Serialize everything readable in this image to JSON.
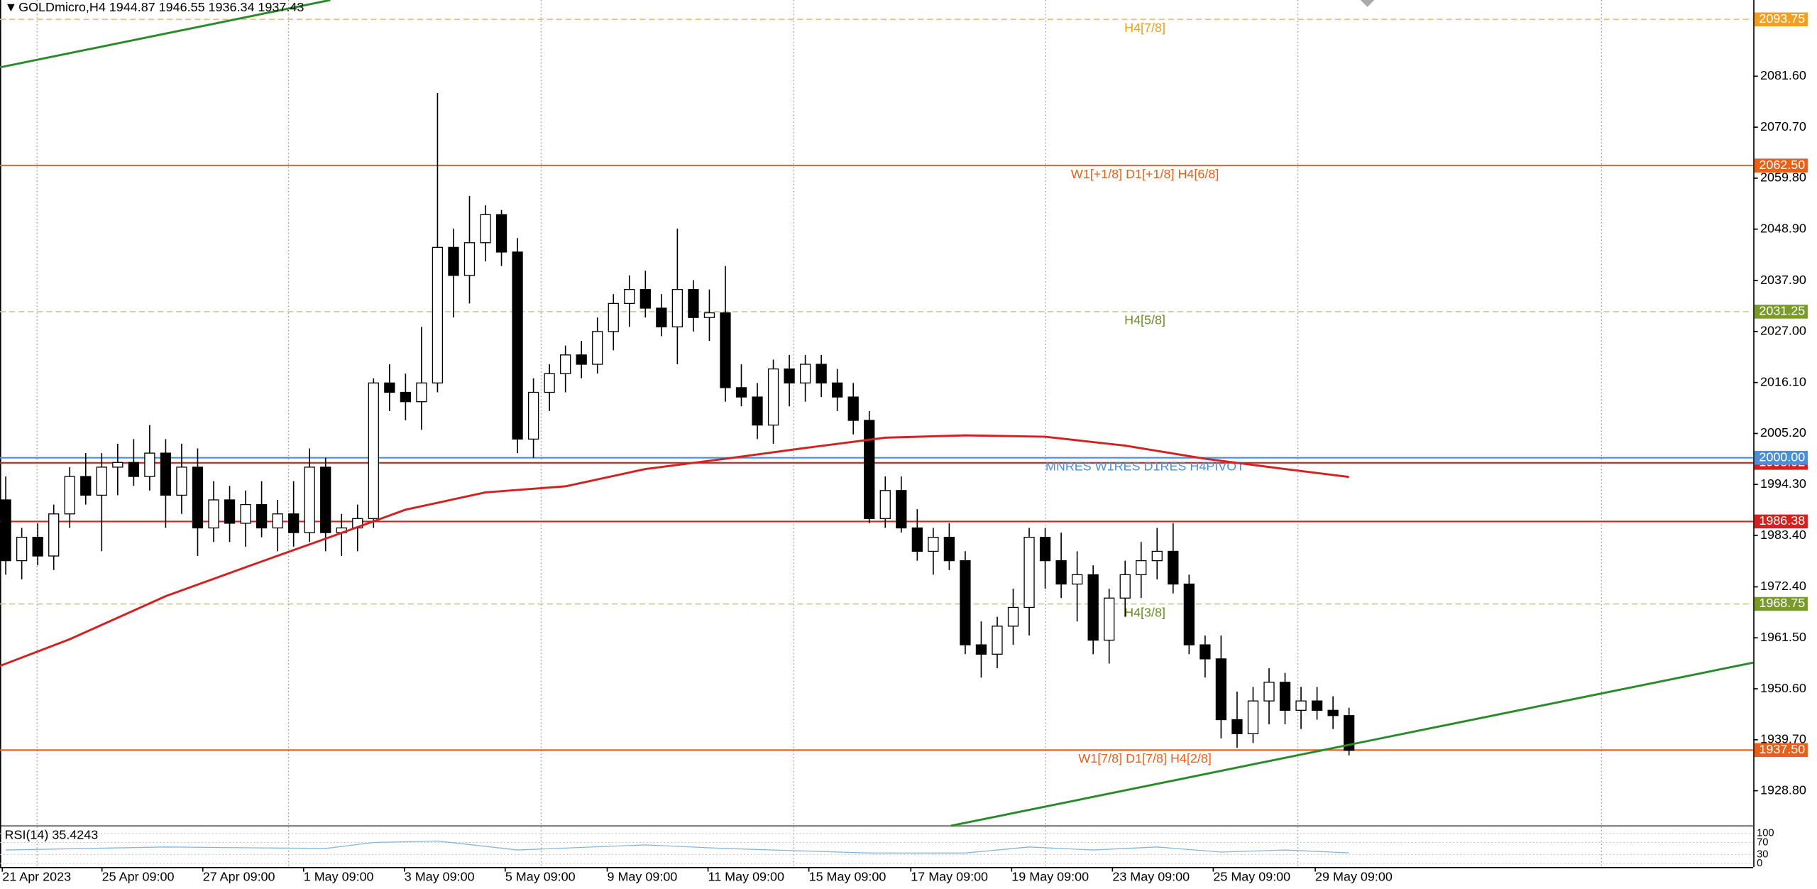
{
  "chart_data": {
    "type": "candlestick",
    "title": "GOLDmicro,H4  1944.87 1946.55 1936.34 1937.43",
    "up_color": "#ffffff",
    "down_color": "#000000",
    "xlim": [
      -0.36,
      109.28
    ],
    "ylim": [
      1921.4,
      2097.9
    ],
    "yticks": [
      {
        "value": 2081.6,
        "label": "2081.60"
      },
      {
        "value": 2070.7,
        "label": "2070.70"
      },
      {
        "value": 2059.8,
        "label": "2059.80"
      },
      {
        "value": 2048.9,
        "label": "2048.90"
      },
      {
        "value": 2037.9,
        "label": "2037.90"
      },
      {
        "value": 2027,
        "label": "2027.00"
      },
      {
        "value": 2016.1,
        "label": "2016.10"
      },
      {
        "value": 2005.2,
        "label": "2005.20"
      },
      {
        "value": 1994.3,
        "label": "1994.30"
      },
      {
        "value": 1983.4,
        "label": "1983.40"
      },
      {
        "value": 1972.4,
        "label": "1972.40"
      },
      {
        "value": 1961.5,
        "label": "1961.50"
      },
      {
        "value": 1950.6,
        "label": "1950.60"
      },
      {
        "value": 1939.7,
        "label": "1939.70"
      },
      {
        "value": 1928.8,
        "label": "1928.80"
      }
    ],
    "x_labels": [
      "21 Apr 2023",
      "25 Apr 09:00",
      "27 Apr 09:00",
      "1 May 09:00",
      "3 May 09:00",
      "5 May 09:00",
      "9 May 09:00",
      "11 May 09:00",
      "15 May 09:00",
      "17 May 09:00",
      "19 May 09:00",
      "23 May 09:00",
      "25 May 09:00",
      "29 May 09:00"
    ],
    "candles": [
      [
        1991,
        1996,
        1975,
        1978
      ],
      [
        1978,
        1985,
        1974,
        1983
      ],
      [
        1983,
        1986,
        1977,
        1979
      ],
      [
        1979,
        1990,
        1976,
        1988
      ],
      [
        1988,
        1998,
        1985,
        1996
      ],
      [
        1996,
        2001,
        1990,
        1992
      ],
      [
        1992,
        2001,
        1980,
        1998
      ],
      [
        1998,
        2003,
        1992,
        1999
      ],
      [
        1999,
        2004,
        1994,
        1996
      ],
      [
        1996,
        2007,
        1993,
        2001
      ],
      [
        2001,
        2004,
        1985,
        1992
      ],
      [
        1992,
        2003,
        1988,
        1998
      ],
      [
        1998,
        2002,
        1979,
        1985
      ],
      [
        1985,
        1995,
        1982,
        1991
      ],
      [
        1991,
        1994,
        1982,
        1986
      ],
      [
        1986,
        1993,
        1981,
        1990
      ],
      [
        1990,
        1995,
        1983,
        1985
      ],
      [
        1985,
        1991,
        1980,
        1988
      ],
      [
        1988,
        1995,
        1981,
        1984
      ],
      [
        1984,
        2002,
        1982,
        1998
      ],
      [
        1998,
        2000,
        1980,
        1984
      ],
      [
        1984,
        1988,
        1979,
        1985
      ],
      [
        1985,
        1990,
        1980,
        1987
      ],
      [
        1987,
        2017,
        1985,
        2016
      ],
      [
        2016,
        2020,
        2010,
        2014
      ],
      [
        2014,
        2018,
        2008,
        2012
      ],
      [
        2012,
        2028,
        2006,
        2016
      ],
      [
        2016,
        2078,
        2014,
        2045
      ],
      [
        2045,
        2049,
        2030,
        2039
      ],
      [
        2039,
        2056,
        2033,
        2046
      ],
      [
        2046,
        2054,
        2042,
        2052
      ],
      [
        2052,
        2053,
        2041,
        2044
      ],
      [
        2044,
        2047,
        2001,
        2004
      ],
      [
        2004,
        2017,
        2000,
        2014
      ],
      [
        2014,
        2020,
        2010,
        2018
      ],
      [
        2018,
        2024,
        2014,
        2022
      ],
      [
        2022,
        2025,
        2017,
        2020
      ],
      [
        2020,
        2030,
        2018,
        2027
      ],
      [
        2027,
        2035,
        2023,
        2033
      ],
      [
        2033,
        2039,
        2028,
        2036
      ],
      [
        2036,
        2040,
        2030,
        2032
      ],
      [
        2032,
        2035,
        2026,
        2028
      ],
      [
        2028,
        2049,
        2020,
        2036
      ],
      [
        2036,
        2038,
        2027,
        2030
      ],
      [
        2030,
        2036,
        2025,
        2031
      ],
      [
        2031,
        2041,
        2012,
        2015
      ],
      [
        2015,
        2020,
        2011,
        2013
      ],
      [
        2013,
        2016,
        2004,
        2007
      ],
      [
        2007,
        2021,
        2003,
        2019
      ],
      [
        2019,
        2022,
        2011,
        2016
      ],
      [
        2016,
        2022,
        2012,
        2020
      ],
      [
        2020,
        2022,
        2013,
        2016
      ],
      [
        2016,
        2019,
        2010,
        2013
      ],
      [
        2013,
        2016,
        2005,
        2008
      ],
      [
        2008,
        2010,
        1986,
        1987
      ],
      [
        1987,
        1996,
        1985,
        1993
      ],
      [
        1993,
        1996,
        1984,
        1985
      ],
      [
        1985,
        1989,
        1978,
        1980
      ],
      [
        1980,
        1985,
        1975,
        1983
      ],
      [
        1983,
        1986,
        1976,
        1978
      ],
      [
        1978,
        1980,
        1958,
        1960
      ],
      [
        1960,
        1965,
        1953,
        1958
      ],
      [
        1958,
        1966,
        1955,
        1964
      ],
      [
        1964,
        1972,
        1960,
        1968
      ],
      [
        1968,
        1985,
        1962,
        1983
      ],
      [
        1983,
        1985,
        1972,
        1978
      ],
      [
        1978,
        1984,
        1970,
        1973
      ],
      [
        1973,
        1980,
        1965,
        1975
      ],
      [
        1975,
        1977,
        1958,
        1961
      ],
      [
        1961,
        1972,
        1956,
        1970
      ],
      [
        1970,
        1978,
        1966,
        1975
      ],
      [
        1975,
        1982,
        1970,
        1978
      ],
      [
        1978,
        1985,
        1974,
        1980
      ],
      [
        1980,
        1986,
        1971,
        1973
      ],
      [
        1973,
        1975,
        1958,
        1960
      ],
      [
        1960,
        1962,
        1953,
        1957
      ],
      [
        1957,
        1962,
        1940,
        1944
      ],
      [
        1944,
        1950,
        1938,
        1941
      ],
      [
        1941,
        1951,
        1939,
        1948
      ],
      [
        1948,
        1955,
        1943,
        1952
      ],
      [
        1952,
        1954,
        1943,
        1946
      ],
      [
        1946,
        1951,
        1942,
        1948
      ],
      [
        1948,
        1951,
        1944,
        1946
      ],
      [
        1946,
        1949,
        1942,
        1944.87
      ],
      [
        1944.87,
        1946.55,
        1936.34,
        1937.43
      ]
    ],
    "overlays": [
      {
        "color": "#d42020",
        "x": [
          -0.36,
          4,
          10,
          15,
          20,
          25,
          30,
          35,
          40,
          45,
          50,
          55,
          60,
          65,
          70,
          75,
          80,
          84
        ],
        "values": [
          1955.5,
          1961.2,
          1970.4,
          1976.6,
          1982.7,
          1988.9,
          1992.6,
          1993.9,
          1997.6,
          1999.8,
          2002.1,
          2004.3,
          2004.8,
          2004.5,
          2002.6,
          1999.8,
          1997.6,
          1995.9
        ]
      },
      {
        "color": "#2a8a2a",
        "x": [
          -0.36,
          20.3
        ],
        "values": [
          2083.5,
          2097.9
        ]
      },
      {
        "color": "#2a8a2a",
        "x": [
          59.1,
          109.28
        ],
        "values": [
          1921.3,
          1956.2
        ]
      }
    ],
    "levels": [
      {
        "price": 2093.75,
        "color": "#e8c060",
        "box_color": "#f0a020",
        "dash": true,
        "text": "H4[7/8]",
        "text_color": "#e8a020"
      },
      {
        "price": {
          "value": 2062.5,
          "label": "2062.50"
        },
        "color": "#e8601c",
        "box_color": "#e8601c",
        "dash": false,
        "text": "W1[+1/8] D1[+1/8] H4[6/8]",
        "text_color": "#e8601c"
      },
      {
        "price": 2031.25,
        "color": "#c8c890",
        "box_color": "#7a9a2a",
        "dash": true,
        "text": "H4[5/8]",
        "text_color": "#6a8a2a"
      },
      {
        "price": 1998.92,
        "color": "#d42020",
        "box_color": "#d42020",
        "dash": false
      },
      {
        "price": {
          "value": 2000,
          "label": "2000.00"
        },
        "color": "#4a90d9",
        "box_color": "#4a90d9",
        "dash": false,
        "text": "MNRES W1RES D1RES H4PIVOT",
        "text_color": "#4a90d9"
      },
      {
        "price": 1986.38,
        "color": "#d42020",
        "box_color": "#d42020",
        "dash": false
      },
      {
        "price": 1968.75,
        "color": "#c8c890",
        "box_color": "#7a9a2a",
        "dash": true,
        "text": "H4[3/8]",
        "text_color": "#6a8a2a"
      },
      {
        "price": {
          "value": 1937.5,
          "label": "1937.50"
        },
        "color": "#e8601c",
        "box_color": "#e8601c",
        "dash": false,
        "text": "W1[7/8] D1[7/8] H4[2/8]",
        "text_color": "#e8601c"
      }
    ],
    "rsi": {
      "label": "RSI(14) 35.4243",
      "color": "#87b5d8",
      "ylim": [
        0,
        100
      ],
      "yticks": [
        100,
        70,
        30,
        0
      ],
      "x": [
        0,
        10,
        20,
        23,
        27,
        32,
        40,
        45,
        54,
        60,
        64,
        68,
        72,
        76,
        80,
        84
      ],
      "values": [
        45,
        55,
        50,
        70,
        75,
        45,
        62,
        50,
        35,
        35,
        55,
        45,
        55,
        38,
        45,
        35.4243
      ]
    }
  }
}
